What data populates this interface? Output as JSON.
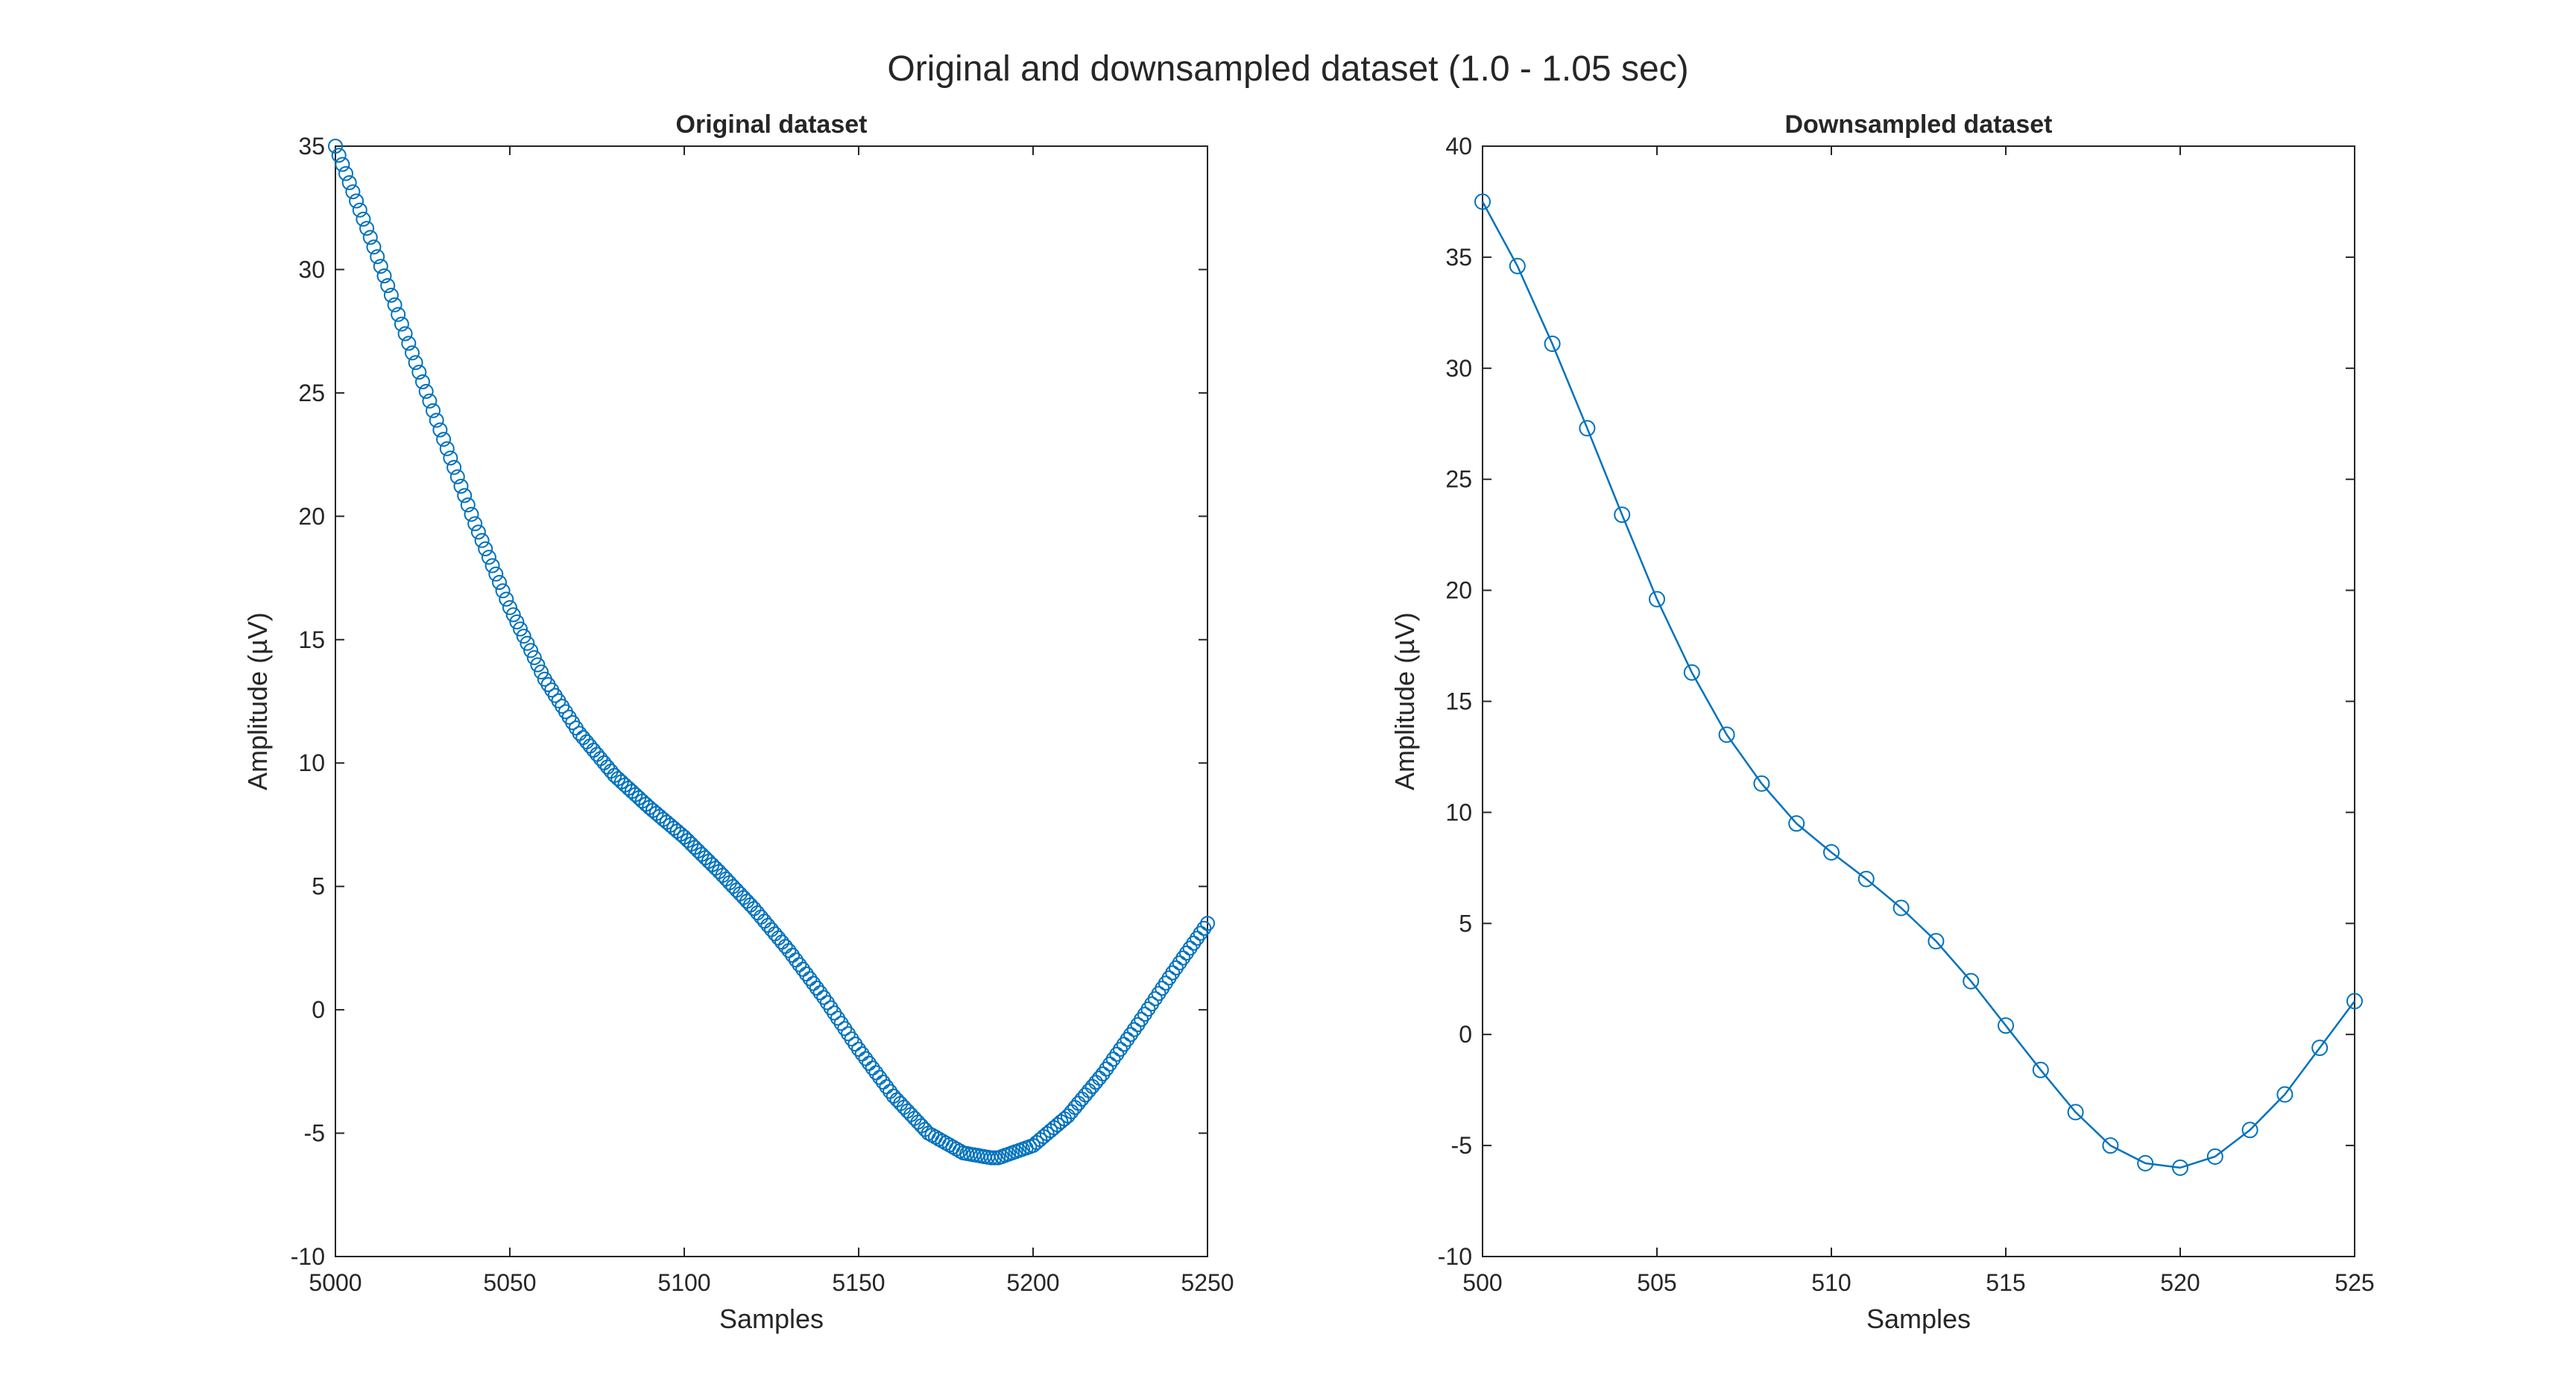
{
  "figure": {
    "title": "Original and downsampled dataset (1.0 - 1.05 sec)"
  },
  "colors": {
    "series": "#0072BD",
    "axes": "#262626",
    "background": "#ffffff"
  },
  "chart_data": [
    {
      "type": "scatter",
      "title": "Original dataset",
      "xlabel": "Samples",
      "ylabel": "Amplitude (µV)",
      "xlim": [
        5000,
        5250
      ],
      "ylim": [
        -10,
        35
      ],
      "xticks": [
        5000,
        5050,
        5100,
        5150,
        5200,
        5250
      ],
      "yticks": [
        -10,
        -5,
        0,
        5,
        10,
        15,
        20,
        25,
        30,
        35
      ],
      "marker": "circle",
      "line": false,
      "grid": false,
      "box": true,
      "x_start": 5000,
      "x_step": 1,
      "anchor_x": [
        5000,
        5010,
        5020,
        5030,
        5040,
        5050,
        5060,
        5070,
        5080,
        5090,
        5100,
        5110,
        5120,
        5130,
        5140,
        5150,
        5160,
        5170,
        5180,
        5188,
        5190,
        5200,
        5210,
        5220,
        5230,
        5240,
        5250
      ],
      "anchor_y": [
        35.0,
        31.3,
        27.4,
        23.5,
        19.7,
        16.3,
        13.4,
        11.2,
        9.5,
        8.2,
        7.0,
        5.6,
        4.1,
        2.4,
        0.5,
        -1.6,
        -3.5,
        -5.0,
        -5.8,
        -6.0,
        -6.0,
        -5.5,
        -4.3,
        -2.6,
        -0.6,
        1.5,
        3.5
      ]
    },
    {
      "type": "line",
      "title": "Downsampled dataset",
      "xlabel": "Samples",
      "ylabel": "Amplitude (µV)",
      "xlim": [
        500,
        525
      ],
      "ylim": [
        -10,
        40
      ],
      "xticks": [
        500,
        505,
        510,
        515,
        520,
        525
      ],
      "yticks": [
        -10,
        -5,
        0,
        5,
        10,
        15,
        20,
        25,
        30,
        35,
        40
      ],
      "marker": "circle",
      "line": true,
      "grid": false,
      "box": true,
      "x": [
        500,
        501,
        502,
        503,
        504,
        505,
        506,
        507,
        508,
        509,
        510,
        511,
        512,
        513,
        514,
        515,
        516,
        517,
        518,
        519,
        520,
        521,
        522,
        523,
        524,
        525
      ],
      "y": [
        37.5,
        34.6,
        31.1,
        27.3,
        23.4,
        19.6,
        16.3,
        13.5,
        11.3,
        9.5,
        8.2,
        7.0,
        5.7,
        4.2,
        2.4,
        0.4,
        -1.6,
        -3.5,
        -5.0,
        -5.8,
        -6.0,
        -5.5,
        -4.3,
        -2.7,
        -0.6,
        1.5
      ]
    }
  ]
}
